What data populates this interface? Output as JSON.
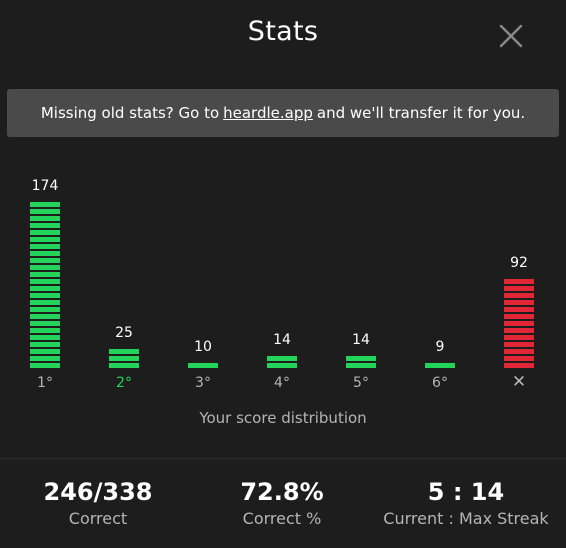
{
  "header": {
    "title": "Stats",
    "close_icon": "close-icon"
  },
  "banner": {
    "text_before": "Missing old stats? Go to",
    "link_text": "heardle.app",
    "text_after": "and we'll transfer it for you."
  },
  "chart_data": {
    "type": "bar",
    "categories": [
      "1°",
      "2°",
      "3°",
      "4°",
      "5°",
      "6°",
      "✕"
    ],
    "values": [
      174,
      25,
      10,
      14,
      14,
      9,
      92
    ],
    "highlighted_category": "2°",
    "xlabel": "Your score distribution",
    "colors": {
      "correct": "#22d45a",
      "fail": "#e32636",
      "highlight_label": "#22d45a",
      "default_label": "#b5b5b5"
    }
  },
  "stats": [
    {
      "value": "246/338",
      "label": "Correct"
    },
    {
      "value": "72.8%",
      "label": "Correct %"
    },
    {
      "value": "5 : 14",
      "label": "Current : Max Streak"
    }
  ]
}
